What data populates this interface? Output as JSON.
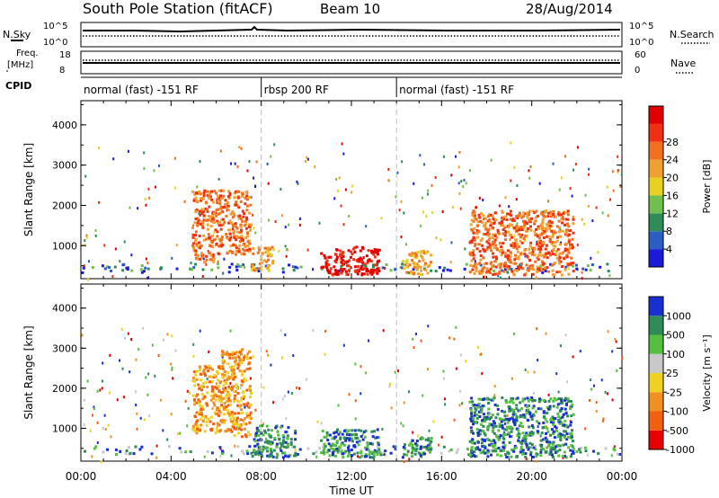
{
  "header": {
    "title": "South Pole Station (fitACF)",
    "beam": "Beam 10",
    "date": "28/Aug/2014"
  },
  "top_panels": {
    "nsky": {
      "label": "N.Sky",
      "tick_top": "10^5",
      "tick_bottom": "10^0"
    },
    "nsearch": {
      "label": "N.Search",
      "tick_top": "10^5",
      "tick_bottom": "10^0"
    },
    "freq": {
      "label_line1": "Freq.",
      "label_line2": "[MHz]",
      "tick_top": "18",
      "tick_bottom": "8"
    },
    "nave": {
      "label": "Nave",
      "tick_top": "60",
      "tick_bottom": "0"
    },
    "cpid": {
      "label": "CPID"
    }
  },
  "cpid_segments": [
    {
      "label": "normal (fast) -151 RF",
      "start_hour": 0,
      "end_hour": 8
    },
    {
      "label": "rbsp 200 RF",
      "start_hour": 8,
      "end_hour": 14
    },
    {
      "label": "normal (fast) -151 RF",
      "start_hour": 14,
      "end_hour": 24
    }
  ],
  "colorbars": {
    "power": {
      "label": "Power [dB]",
      "ticks": [
        "4",
        "8",
        "12",
        "16",
        "20",
        "24",
        "28"
      ],
      "colors": [
        "#1a1ad8",
        "#2a5ec0",
        "#2e8b57",
        "#6fc04e",
        "#e8d020",
        "#f0a030",
        "#f07020",
        "#f03010",
        "#e00000"
      ]
    },
    "velocity": {
      "label": "Velocity [m s⁻¹]",
      "ticks": [
        "1000",
        "500",
        "100",
        "25",
        "-25",
        "-100",
        "-500",
        "-1000"
      ],
      "colors": [
        "#1a2fd0",
        "#2e8b57",
        "#55c040",
        "#c8c8c8",
        "#f0d020",
        "#f09020",
        "#f06010",
        "#e80000"
      ]
    }
  },
  "chart_data": [
    {
      "type": "heatmap",
      "name": "power",
      "ylabel": "Slant Range [km]",
      "xlim_hours": [
        0,
        24
      ],
      "ylim": [
        180,
        4600
      ],
      "yticks": [
        "1000",
        "2000",
        "3000",
        "4000"
      ],
      "xticks": [
        "00:00",
        "04:00",
        "08:00",
        "12:00",
        "16:00",
        "20:00",
        "00:00"
      ],
      "regions": [
        {
          "t0": 4.9,
          "t1": 6.0,
          "r0": 600,
          "r1": 2400,
          "level": 6
        },
        {
          "t0": 6.0,
          "t1": 7.5,
          "r0": 800,
          "r1": 2400,
          "level": 6
        },
        {
          "t0": 7.5,
          "t1": 8.5,
          "r0": 400,
          "r1": 1000,
          "level": 5
        },
        {
          "t0": 10.6,
          "t1": 13.2,
          "r0": 300,
          "r1": 1000,
          "level": 8
        },
        {
          "t0": 14.2,
          "t1": 15.5,
          "r0": 300,
          "r1": 900,
          "level": 5
        },
        {
          "t0": 17.2,
          "t1": 21.8,
          "r0": 300,
          "r1": 1900,
          "level": 6
        }
      ]
    },
    {
      "type": "heatmap",
      "name": "velocity",
      "ylabel": "Slant Range [km]",
      "xlabel": "Time UT",
      "xlim_hours": [
        0,
        24
      ],
      "ylim": [
        180,
        4600
      ],
      "yticks": [
        "1000",
        "2000",
        "3000",
        "4000"
      ],
      "xticks": [
        "00:00",
        "04:00",
        "08:00",
        "12:00",
        "16:00",
        "20:00",
        "00:00"
      ],
      "regions": [
        {
          "t0": 4.9,
          "t1": 6.2,
          "r0": 900,
          "r1": 2600,
          "level": 5
        },
        {
          "t0": 6.2,
          "t1": 7.5,
          "r0": 800,
          "r1": 3000,
          "level": 5
        },
        {
          "t0": 7.5,
          "t1": 9.5,
          "r0": 300,
          "r1": 1100,
          "level": 1
        },
        {
          "t0": 10.6,
          "t1": 13.2,
          "r0": 300,
          "r1": 1000,
          "level": 1
        },
        {
          "t0": 14.2,
          "t1": 15.5,
          "r0": 300,
          "r1": 800,
          "level": 1
        },
        {
          "t0": 17.2,
          "t1": 21.8,
          "r0": 300,
          "r1": 1800,
          "level": 1
        }
      ]
    }
  ]
}
